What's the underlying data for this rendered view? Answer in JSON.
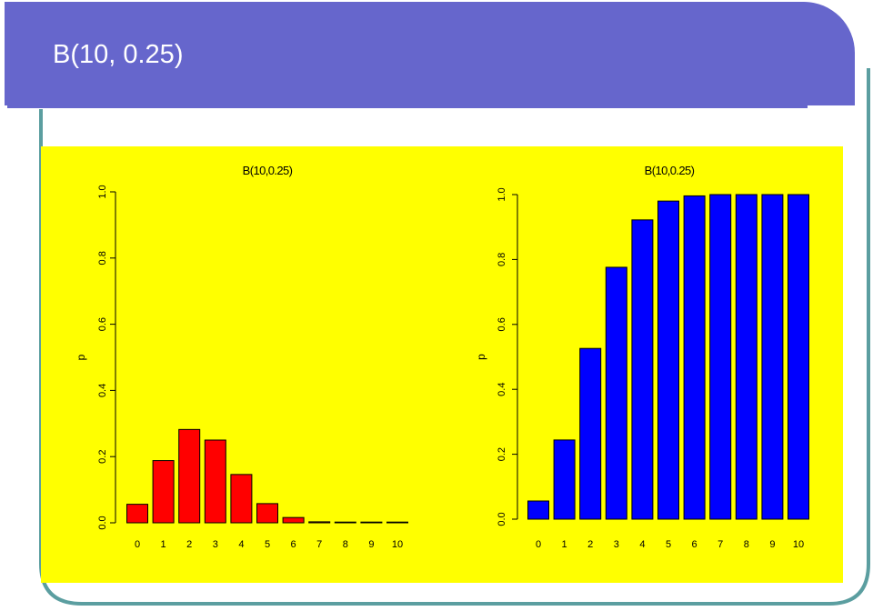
{
  "slide": {
    "title": "B(10, 0.25)"
  },
  "colors": {
    "title_band": "#6666cc",
    "panel_background": "#ffff00",
    "pmf_bars": "#ff0000",
    "cdf_bars": "#0000ff"
  },
  "chart_data": [
    {
      "type": "bar",
      "title": "B(10,0.25)",
      "xlabel": "",
      "ylabel": "p",
      "categories": [
        "0",
        "1",
        "2",
        "3",
        "4",
        "5",
        "6",
        "7",
        "8",
        "9",
        "10"
      ],
      "values": [
        0.056,
        0.188,
        0.282,
        0.25,
        0.146,
        0.058,
        0.016,
        0.003,
        0.0004,
        3e-05,
        1e-06
      ],
      "ylim": [
        0,
        1.0
      ],
      "yticks": [
        "0.0",
        "0.2",
        "0.4",
        "0.6",
        "0.8",
        "1.0"
      ],
      "bar_color": "#ff0000"
    },
    {
      "type": "bar",
      "title": "B(10,0.25)",
      "xlabel": "",
      "ylabel": "p",
      "categories": [
        "0",
        "1",
        "2",
        "3",
        "4",
        "5",
        "6",
        "7",
        "8",
        "9",
        "10"
      ],
      "values": [
        0.056,
        0.244,
        0.526,
        0.776,
        0.922,
        0.98,
        0.996,
        1.0,
        1.0,
        1.0,
        1.0
      ],
      "ylim": [
        0,
        1.0
      ],
      "yticks": [
        "0.0",
        "0.2",
        "0.4",
        "0.6",
        "0.8",
        "1.0"
      ],
      "bar_color": "#0000ff"
    }
  ]
}
